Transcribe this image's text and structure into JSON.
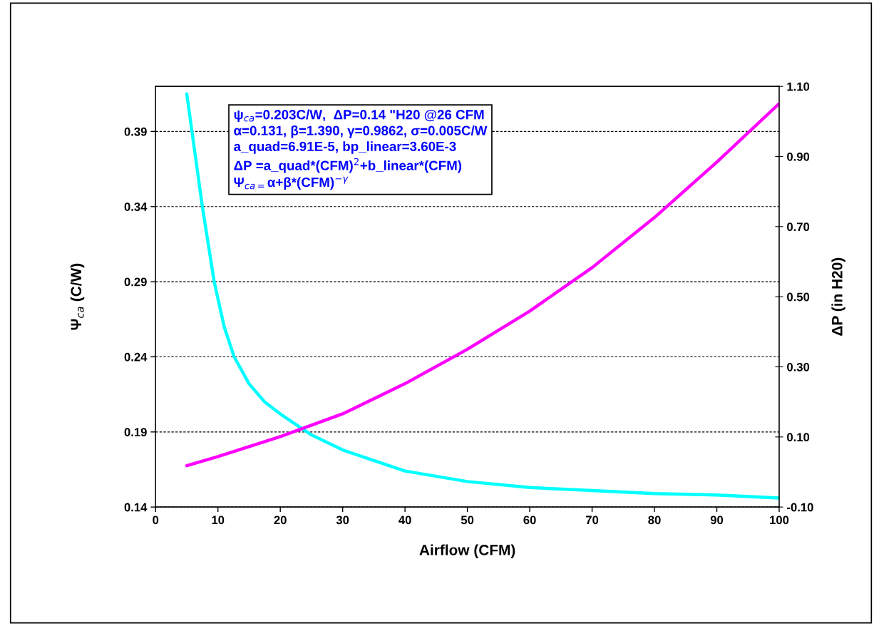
{
  "chart_data": {
    "type": "line",
    "xlabel": "Airflow (CFM)",
    "ylabel": "Ψ$_{ca}$ (C/W)",
    "y2label": "ΔP (in H20)",
    "xlim": [
      0,
      100
    ],
    "xticks": [
      0,
      10,
      20,
      30,
      40,
      50,
      60,
      70,
      80,
      90,
      100
    ],
    "ylim": [
      0.14,
      0.42
    ],
    "yticks": [
      {
        "value": 0.14,
        "label": "0.14"
      },
      {
        "value": 0.19,
        "label": "0.19"
      },
      {
        "value": 0.24,
        "label": "0.24"
      },
      {
        "value": 0.29,
        "label": "0.29"
      },
      {
        "value": 0.34,
        "label": "0.34"
      },
      {
        "value": 0.39,
        "label": "0.39"
      }
    ],
    "y2lim": [
      -0.1,
      1.1
    ],
    "y2ticks": [
      {
        "value": -0.1,
        "label": "-0.10"
      },
      {
        "value": 0.1,
        "label": "0.10"
      },
      {
        "value": 0.3,
        "label": "0.30"
      },
      {
        "value": 0.5,
        "label": "0.50"
      },
      {
        "value": 0.7,
        "label": "0.70"
      },
      {
        "value": 0.9,
        "label": "0.90"
      },
      {
        "value": 1.1,
        "label": "1.10"
      }
    ],
    "grid": "y",
    "legend": false,
    "line_style": "solid",
    "series": [
      {
        "color": "#00ffff",
        "x": [
          5,
          6,
          7.5,
          9.4,
          11,
          12.6,
          15,
          17.5,
          20,
          25,
          30,
          40,
          50,
          60,
          70,
          80,
          90,
          100
        ],
        "values": [
          0.415,
          0.385,
          0.34,
          0.29,
          0.26,
          0.24,
          0.222,
          0.21,
          0.202,
          0.188,
          0.178,
          0.164,
          0.157,
          0.153,
          0.151,
          0.149,
          0.148,
          0.146
        ]
      },
      {
        "color": "#ff00ff",
        "axis": "y2",
        "x": [
          5,
          10,
          20,
          30,
          40,
          50,
          60,
          70,
          80,
          90,
          100
        ],
        "values": [
          0.018,
          0.044,
          0.101,
          0.166,
          0.252,
          0.35,
          0.459,
          0.583,
          0.726,
          0.884,
          1.051
        ]
      }
    ],
    "annotations": [
      "ψ$_{ca}$=0.203C/W,  ΔP=0.14 \"H20 @26 CFM",
      "α=0.131, β=1.390, γ=0.9862, σ=0.005C/W",
      "a_quad=6.91E-5, bp_linear=3.60E-3",
      "ΔP =a_quad*(CFM)$^{2}$+b_linear*(CFM)",
      "Ψ$_{ca=}$α+β*(CFM)$^{−γ}$"
    ]
  }
}
